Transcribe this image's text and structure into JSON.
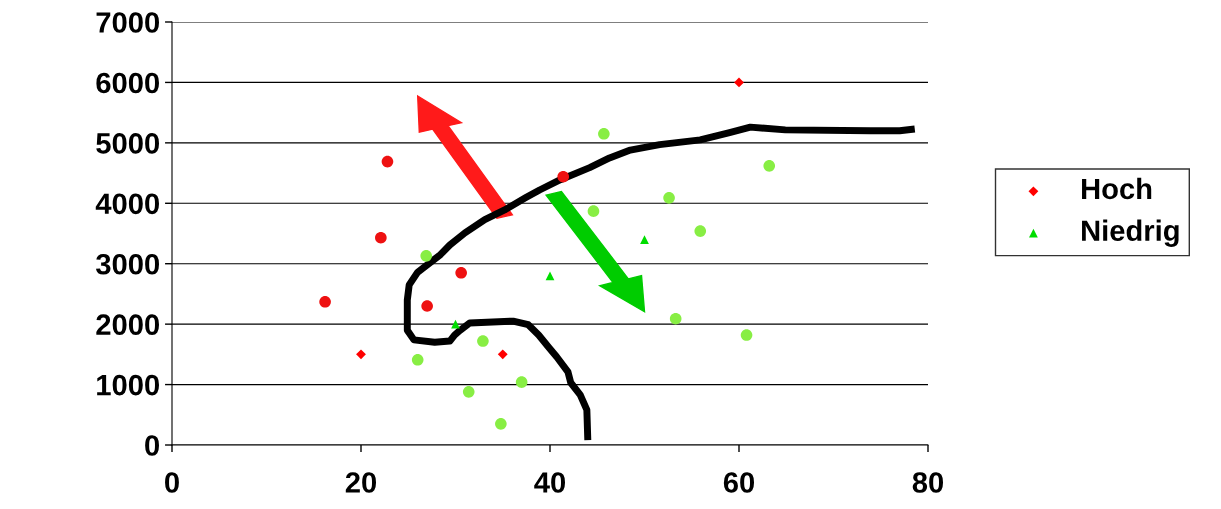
{
  "chart_data": {
    "type": "scatter",
    "xlim": [
      0,
      80
    ],
    "ylim": [
      0,
      7000
    ],
    "xticks": [
      0,
      20,
      40,
      60,
      80
    ],
    "yticks": [
      0,
      1000,
      2000,
      3000,
      4000,
      5000,
      6000,
      7000
    ],
    "grid": "y",
    "legend": "right",
    "series": [
      {
        "name": "Hoch",
        "color": "#ff0000",
        "marker": "diamond",
        "x": [
          20,
          35,
          60
        ],
        "values": [
          1500,
          1500,
          6000
        ]
      },
      {
        "name": "Niedrig",
        "color": "#00dd00",
        "marker": "triangle",
        "x": [
          30,
          40,
          50
        ],
        "values": [
          2000,
          2800,
          3400
        ]
      },
      {
        "color": "#ee1111",
        "marker": "circle",
        "x": [
          22.8,
          22.1,
          16.2,
          27.0,
          30.6,
          41.4
        ],
        "values": [
          4690,
          3430,
          2370,
          2300,
          2850,
          4440
        ]
      },
      {
        "color": "#88ee44",
        "marker": "circle",
        "x": [
          45.7,
          63.2,
          52.6,
          44.6,
          55.9,
          26.9,
          53.3,
          60.8,
          32.9,
          26.0,
          37.0,
          31.4,
          34.8
        ],
        "values": [
          5150,
          4620,
          4090,
          3870,
          3540,
          3130,
          2090,
          1820,
          1720,
          1410,
          1040,
          880,
          350
        ]
      },
      {
        "type": "line",
        "color": "#000000",
        "marker": "none",
        "x": [
          44.0,
          43.9,
          43.2,
          42.2,
          41.9,
          40.7,
          39.9,
          38.8,
          37.7,
          36.1,
          31.5,
          30.5,
          29.9,
          29.4,
          27.8,
          25.6,
          24.9,
          24.9,
          25.1,
          26.0,
          28.4,
          29.4,
          31.0,
          33.1,
          35.2,
          37.4,
          38.9,
          41.1,
          44.2,
          46.3,
          48.5,
          51.6,
          55.9,
          59.0,
          61.2,
          64.9,
          73.9,
          77.0,
          78.6
        ],
        "values": [
          80,
          580,
          830,
          1030,
          1210,
          1460,
          1610,
          1820,
          1990,
          2050,
          2020,
          1900,
          1820,
          1720,
          1700,
          1740,
          1900,
          2400,
          2650,
          2860,
          3150,
          3310,
          3510,
          3730,
          3890,
          4090,
          4220,
          4390,
          4590,
          4750,
          4880,
          4970,
          5050,
          5170,
          5260,
          5215,
          5200,
          5200,
          5230
        ]
      }
    ]
  }
}
